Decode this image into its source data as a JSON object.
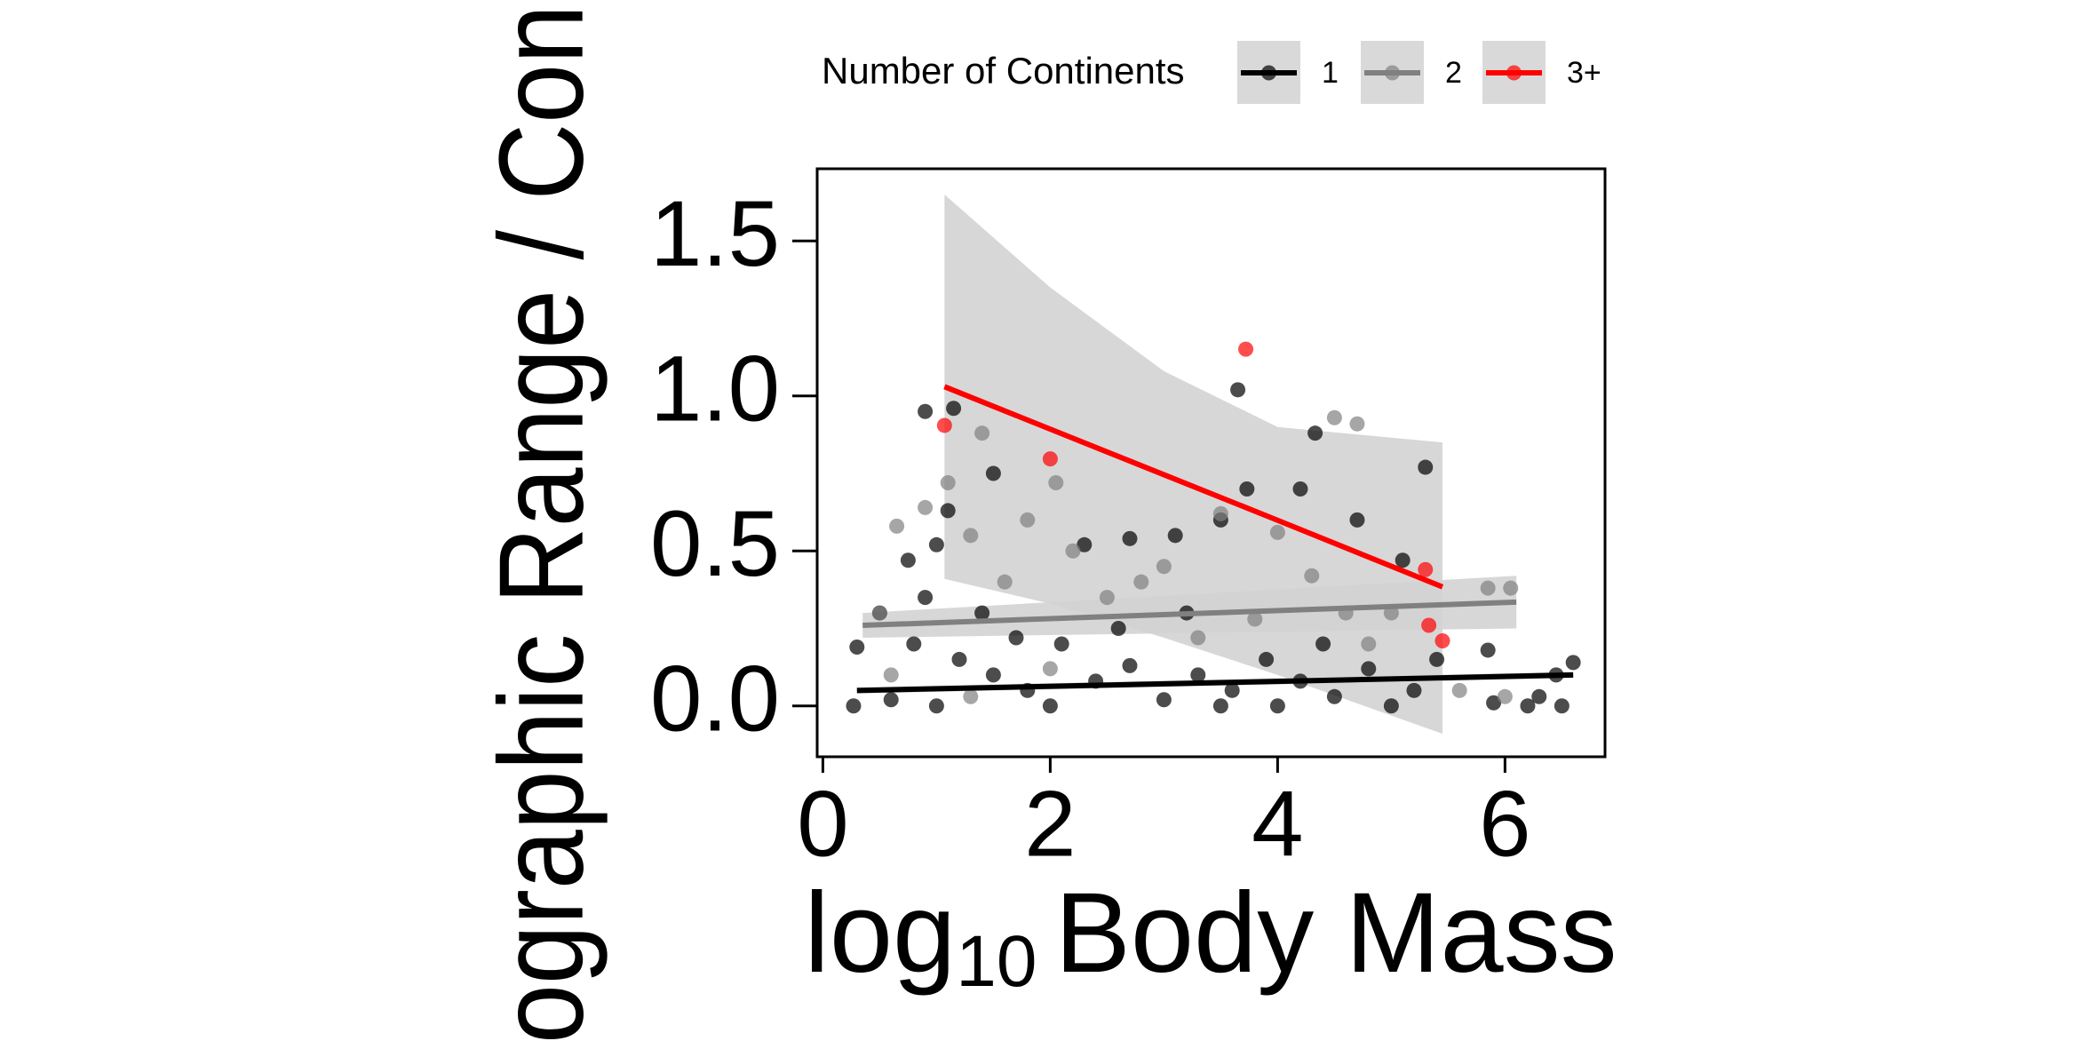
{
  "chart_data": {
    "type": "scatter",
    "x_label": {
      "base": "log",
      "sub": "10",
      "rest": "Body Mass"
    },
    "y_label": "ographic Range / Con",
    "legend_title": "Number of Continents",
    "legend_position": "top",
    "ribbon_color": "#d3d3d3",
    "xlim": [
      -0.05,
      6.88
    ],
    "xticks": [
      0,
      2,
      4,
      6
    ],
    "ylim": [
      -0.164,
      1.733
    ],
    "yticks": [
      {
        "value": 0,
        "label": "0.0"
      },
      0.5,
      {
        "value": 1,
        "label": "1.0"
      },
      1.5
    ],
    "series": [
      {
        "name": "1",
        "color": "#000000",
        "x": [
          0.9,
          1.15,
          3.65,
          4.33,
          5.3,
          3.73,
          4.2,
          1.5,
          1.1,
          2.3,
          2.7,
          3.1,
          3.5,
          4.7,
          0.75,
          1.0,
          5.1,
          5.85,
          6.6,
          6.45,
          6.3,
          6.5,
          6.2,
          5.9,
          0.27,
          0.3,
          0.5,
          0.8,
          1.2,
          1.5,
          1.8,
          2.1,
          2.4,
          2.7,
          3.0,
          3.3,
          3.6,
          3.9,
          4.2,
          4.5,
          4.8,
          5.0,
          5.2,
          0.6,
          1.0,
          2.0,
          3.5,
          4.0,
          1.4,
          2.6,
          4.4,
          0.9,
          1.7,
          3.2,
          5.4
        ],
        "values": [
          0.95,
          0.96,
          1.02,
          0.88,
          0.77,
          0.7,
          0.7,
          0.75,
          0.63,
          0.52,
          0.54,
          0.55,
          0.6,
          0.6,
          0.47,
          0.52,
          0.47,
          0.18,
          0.14,
          0.1,
          0.03,
          0.0,
          0.0,
          0.01,
          0.0,
          0.19,
          0.3,
          0.2,
          0.15,
          0.1,
          0.05,
          0.2,
          0.08,
          0.13,
          0.02,
          0.1,
          0.05,
          0.15,
          0.08,
          0.03,
          0.12,
          0.0,
          0.05,
          0.02,
          0.0,
          0.0,
          0.0,
          0.0,
          0.3,
          0.25,
          0.2,
          0.35,
          0.22,
          0.3,
          0.15
        ],
        "fit": {
          "x": [
            0.3,
            6.6
          ],
          "y": [
            0.05,
            0.1
          ],
          "lower": [
            0.04,
            0.09
          ],
          "upper": [
            0.06,
            0.11
          ]
        }
      },
      {
        "name": "2",
        "color": "#808080",
        "x": [
          1.4,
          4.5,
          4.7,
          1.1,
          2.05,
          3.5,
          0.65,
          0.9,
          1.3,
          2.2,
          4.0,
          5.85,
          6.05,
          4.6,
          3.0,
          1.6,
          0.5,
          2.5,
          3.8,
          5.0,
          1.3,
          2.0,
          4.8,
          5.6,
          6.0,
          0.6,
          3.3,
          2.8,
          4.3,
          1.8
        ],
        "values": [
          0.88,
          0.93,
          0.91,
          0.72,
          0.72,
          0.62,
          0.58,
          0.64,
          0.55,
          0.5,
          0.56,
          0.38,
          0.38,
          0.3,
          0.45,
          0.4,
          0.3,
          0.35,
          0.28,
          0.3,
          0.03,
          0.12,
          0.2,
          0.05,
          0.03,
          0.1,
          0.22,
          0.4,
          0.42,
          0.6
        ],
        "fit": {
          "x": [
            0.35,
            6.1
          ],
          "y": [
            0.26,
            0.335
          ],
          "lower": [
            0.22,
            0.25
          ],
          "upper": [
            0.3,
            0.42
          ]
        }
      },
      {
        "name": "3+",
        "color": "#ff0000",
        "x": [
          1.07,
          2.0,
          3.72,
          5.3,
          5.33,
          5.45
        ],
        "values": [
          0.905,
          0.797,
          1.151,
          0.44,
          0.26,
          0.21
        ],
        "fit": {
          "x": [
            1.07,
            2,
            3,
            4,
            5.45
          ],
          "y": [
            1.03,
            0.893,
            0.746,
            0.599,
            0.384
          ],
          "lower": [
            0.41,
            0.33,
            0.22,
            0.1,
            -0.09
          ],
          "upper": [
            1.65,
            1.35,
            1.08,
            0.9,
            0.85
          ]
        }
      }
    ]
  }
}
